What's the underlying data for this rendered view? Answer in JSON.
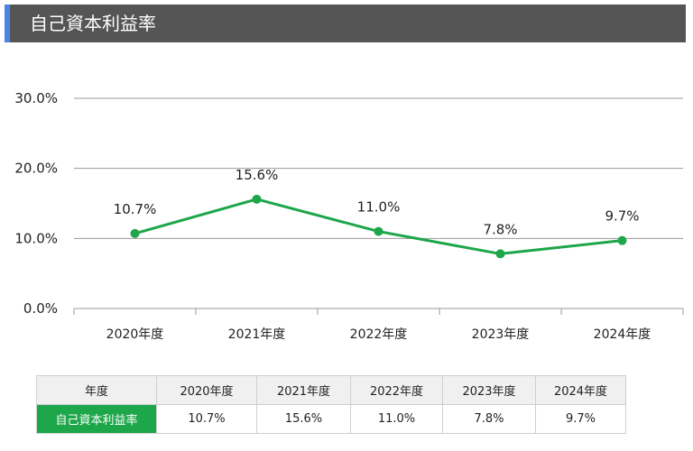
{
  "header": {
    "title": "自己資本利益率"
  },
  "colors": {
    "line": "#1ea64a",
    "header_bg": "#555555",
    "accent": "#4a86e8",
    "grid": "#999999"
  },
  "chart_data": {
    "type": "line",
    "categories": [
      "2020年度",
      "2021年度",
      "2022年度",
      "2023年度",
      "2024年度"
    ],
    "series": [
      {
        "values": [
          10.7,
          15.6,
          11.0,
          7.8,
          9.7
        ],
        "labels": [
          "10.7%",
          "15.6%",
          "11.0%",
          "7.8%",
          "9.7%"
        ]
      }
    ],
    "yticks": [
      "0.0%",
      "10.0%",
      "20.0%",
      "30.0%"
    ],
    "ylim": [
      0,
      30
    ],
    "grid": true,
    "legend": "none"
  },
  "table": {
    "header_label": "年度",
    "row_label": "自己資本利益率",
    "years": [
      "2020年度",
      "2021年度",
      "2022年度",
      "2023年度",
      "2024年度"
    ],
    "values": [
      "10.7%",
      "15.6%",
      "11.0%",
      "7.8%",
      "9.7%"
    ]
  }
}
